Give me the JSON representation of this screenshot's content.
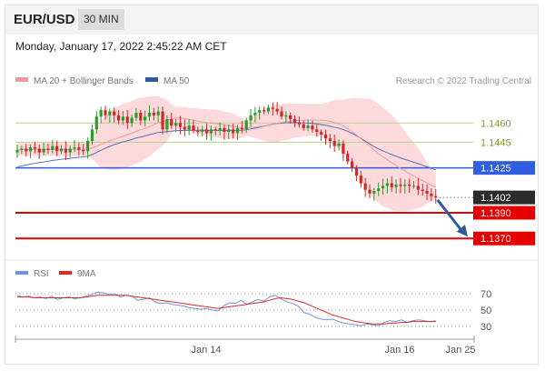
{
  "header": {
    "symbol": "EUR/USD",
    "timeframe": "30 MIN"
  },
  "timestamp": "Monday, January 17, 2022 2:45:22 AM CET",
  "legend": {
    "ma_bollinger": "MA 20 + Bollinger Bands",
    "ma50": "MA 50",
    "copyright": "Research © 2022 Trading Central"
  },
  "rsi_legend": {
    "rsi": "RSI",
    "ma9": "9MA"
  },
  "colors": {
    "bull": "#2e9a2e",
    "bear": "#d32626",
    "band": "#fcd9da",
    "ma20": "#ee9b9e",
    "ma50": "#5b6fb8",
    "resistance": "#b9cf8e",
    "pivot": "#2f5fe0",
    "support": "#e50000",
    "arrow": "#2d5a9b",
    "rsi": "#6f94dd",
    "rsi_ma": "#d92a2a"
  },
  "chart_data": {
    "type": "candlestick",
    "title": "EUR/USD",
    "ylim": [
      1.1356,
      1.1485
    ],
    "x_labels": [
      "Jan 14",
      "Jan 16",
      "Jan 25"
    ],
    "levels": [
      {
        "price": 1.146,
        "label": "1.1460",
        "kind": "resistance"
      },
      {
        "price": 1.1445,
        "label": "1.1445",
        "kind": "resistance"
      },
      {
        "price": 1.1425,
        "label": "1.1425",
        "kind": "pivot"
      },
      {
        "price": 1.1402,
        "label": "1.1402",
        "kind": "last"
      },
      {
        "price": 1.139,
        "label": "1.1390",
        "kind": "support"
      },
      {
        "price": 1.137,
        "label": "1.1370",
        "kind": "support"
      }
    ],
    "forecast": {
      "from": 1.14,
      "to": 1.137,
      "direction": "down"
    },
    "close": [
      1.1439,
      1.144,
      1.1438,
      1.1441,
      1.144,
      1.1437,
      1.144,
      1.1439,
      1.1442,
      1.1438,
      1.144,
      1.1437,
      1.144,
      1.1441,
      1.1439,
      1.1438,
      1.1446,
      1.1455,
      1.1465,
      1.147,
      1.1466,
      1.1469,
      1.1466,
      1.1462,
      1.1465,
      1.146,
      1.1464,
      1.1468,
      1.1462,
      1.1465,
      1.1468,
      1.1466,
      1.1469,
      1.1455,
      1.1463,
      1.1458,
      1.146,
      1.1457,
      1.1455,
      1.1458,
      1.1454,
      1.1453,
      1.1455,
      1.1452,
      1.1455,
      1.1454,
      1.1456,
      1.1453,
      1.1455,
      1.1452,
      1.1456,
      1.1455,
      1.1462,
      1.1466,
      1.1468,
      1.147,
      1.1469,
      1.1472,
      1.1471,
      1.1469,
      1.1465,
      1.1466,
      1.1463,
      1.146,
      1.1459,
      1.1456,
      1.1458,
      1.1455,
      1.1453,
      1.1451,
      1.1448,
      1.1446,
      1.1442,
      1.1444,
      1.1436,
      1.143,
      1.1425,
      1.1419,
      1.1413,
      1.1408,
      1.1405,
      1.1407,
      1.1409,
      1.1411,
      1.1413,
      1.141,
      1.1412,
      1.1411,
      1.1412,
      1.1411,
      1.1411,
      1.1408,
      1.1407,
      1.1405,
      1.1403,
      1.1402
    ],
    "rsi": {
      "ylim": [
        20,
        80
      ],
      "levels": [
        70,
        50,
        30
      ],
      "series": [
        {
          "name": "RSI",
          "values": [
            68,
            66,
            67,
            65,
            66,
            64,
            67,
            63,
            65,
            66,
            64,
            65,
            67,
            69,
            72,
            71,
            69,
            70,
            66,
            68,
            67,
            62,
            63,
            65,
            60,
            58,
            59,
            57,
            56,
            55,
            53,
            52,
            51,
            52,
            50,
            49,
            55,
            59,
            58,
            62,
            57,
            60,
            63,
            61,
            66,
            68,
            64,
            60,
            58,
            55,
            47,
            45,
            41,
            39,
            38,
            39,
            36,
            34,
            33,
            32,
            31,
            33,
            32,
            31,
            35,
            37,
            36,
            38,
            35,
            37,
            38,
            37,
            36,
            37
          ]
        },
        {
          "name": "9MA",
          "values": [
            66,
            66,
            66,
            65,
            65,
            65,
            65,
            65,
            65,
            65,
            65,
            65,
            66,
            67,
            68,
            68,
            68,
            68,
            68,
            68,
            67,
            66,
            65,
            64,
            63,
            62,
            61,
            60,
            59,
            58,
            57,
            56,
            55,
            54,
            53,
            52,
            53,
            54,
            55,
            56,
            57,
            58,
            59,
            60,
            62,
            64,
            65,
            64,
            63,
            61,
            59,
            56,
            53,
            50,
            47,
            44,
            42,
            40,
            38,
            36,
            35,
            34,
            33,
            33,
            33,
            34,
            34,
            35,
            35,
            36,
            36,
            36,
            36,
            36
          ]
        }
      ]
    }
  }
}
